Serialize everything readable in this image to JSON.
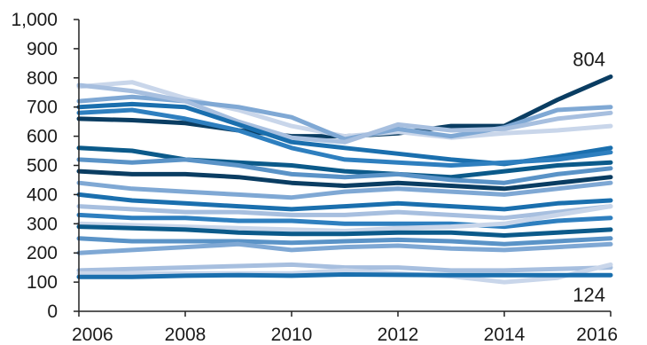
{
  "chart_data": {
    "type": "line",
    "title": "",
    "xlabel": "",
    "ylabel": "",
    "x": [
      2006,
      2007,
      2008,
      2009,
      2010,
      2011,
      2012,
      2013,
      2014,
      2015,
      2016
    ],
    "xlim": [
      2006,
      2016
    ],
    "ylim": [
      0,
      1000
    ],
    "x_ticks": [
      2006,
      2008,
      2010,
      2012,
      2014,
      2016
    ],
    "x_tick_labels": [
      "2006",
      "2008",
      "2010",
      "2012",
      "2014",
      "2016"
    ],
    "y_ticks": [
      0,
      100,
      200,
      300,
      400,
      500,
      600,
      700,
      800,
      900,
      1000
    ],
    "y_tick_labels": [
      "0",
      "100",
      "200",
      "300",
      "400",
      "500",
      "600",
      "700",
      "800",
      "900",
      "1,000"
    ],
    "grid": false,
    "legend": "none",
    "annotations": [
      {
        "text": "804",
        "x": 2016,
        "y": 804
      },
      {
        "text": "124",
        "x": 2016,
        "y": 124
      }
    ],
    "colors": [
      "#0a3d62",
      "#0b5a8a",
      "#1a6fae",
      "#2e7fbf",
      "#5a93c7",
      "#7fa8d4",
      "#a7bfdf",
      "#c9d6ea"
    ],
    "series": [
      {
        "color": "#0a3d62",
        "values": [
          660,
          655,
          645,
          620,
          600,
          600,
          610,
          635,
          635,
          725,
          804
        ]
      },
      {
        "color": "#c9d6ea",
        "values": [
          770,
          785,
          730,
          690,
          635,
          600,
          615,
          595,
          610,
          620,
          635
        ]
      },
      {
        "color": "#7fa8d4",
        "values": [
          720,
          735,
          720,
          700,
          665,
          590,
          625,
          600,
          630,
          690,
          700
        ]
      },
      {
        "color": "#a7bfdf",
        "values": [
          775,
          755,
          720,
          650,
          595,
          580,
          640,
          620,
          625,
          660,
          680
        ]
      },
      {
        "color": "#1a6fae",
        "values": [
          700,
          710,
          700,
          640,
          580,
          560,
          540,
          520,
          505,
          530,
          560
        ]
      },
      {
        "color": "#2e7fbf",
        "values": [
          680,
          690,
          660,
          620,
          560,
          520,
          510,
          500,
          510,
          520,
          545
        ]
      },
      {
        "color": "#0b5a8a",
        "values": [
          560,
          550,
          520,
          510,
          500,
          480,
          470,
          460,
          480,
          500,
          510
        ]
      },
      {
        "color": "#5a93c7",
        "values": [
          520,
          510,
          520,
          500,
          470,
          460,
          470,
          450,
          440,
          470,
          490
        ]
      },
      {
        "color": "#0a3d62",
        "values": [
          480,
          470,
          470,
          460,
          440,
          430,
          440,
          430,
          420,
          440,
          460
        ]
      },
      {
        "color": "#7fa8d4",
        "values": [
          440,
          420,
          410,
          400,
          390,
          410,
          420,
          410,
          400,
          420,
          440
        ]
      },
      {
        "color": "#1a6fae",
        "values": [
          400,
          380,
          370,
          360,
          350,
          360,
          370,
          360,
          350,
          370,
          380
        ]
      },
      {
        "color": "#a7bfdf",
        "values": [
          360,
          350,
          340,
          340,
          330,
          330,
          340,
          330,
          320,
          340,
          360
        ]
      },
      {
        "color": "#2e7fbf",
        "values": [
          330,
          320,
          320,
          310,
          310,
          300,
          300,
          300,
          290,
          310,
          320
        ]
      },
      {
        "color": "#c9d6ea",
        "values": [
          300,
          295,
          290,
          285,
          280,
          275,
          285,
          290,
          300,
          330,
          360
        ]
      },
      {
        "color": "#0b5a8a",
        "values": [
          290,
          285,
          280,
          270,
          265,
          265,
          270,
          270,
          260,
          270,
          280
        ]
      },
      {
        "color": "#5a93c7",
        "values": [
          250,
          240,
          240,
          240,
          235,
          240,
          245,
          240,
          230,
          240,
          250
        ]
      },
      {
        "color": "#7fa8d4",
        "values": [
          200,
          210,
          220,
          230,
          210,
          220,
          225,
          215,
          210,
          220,
          230
        ]
      },
      {
        "color": "#a7bfdf",
        "values": [
          140,
          145,
          150,
          155,
          160,
          150,
          150,
          140,
          140,
          145,
          150
        ]
      },
      {
        "color": "#c9d6ea",
        "values": [
          130,
          130,
          130,
          130,
          130,
          140,
          130,
          120,
          100,
          115,
          160
        ]
      },
      {
        "color": "#1a6fae",
        "values": [
          118,
          118,
          122,
          124,
          122,
          126,
          125,
          124,
          124,
          124,
          124
        ]
      }
    ]
  }
}
